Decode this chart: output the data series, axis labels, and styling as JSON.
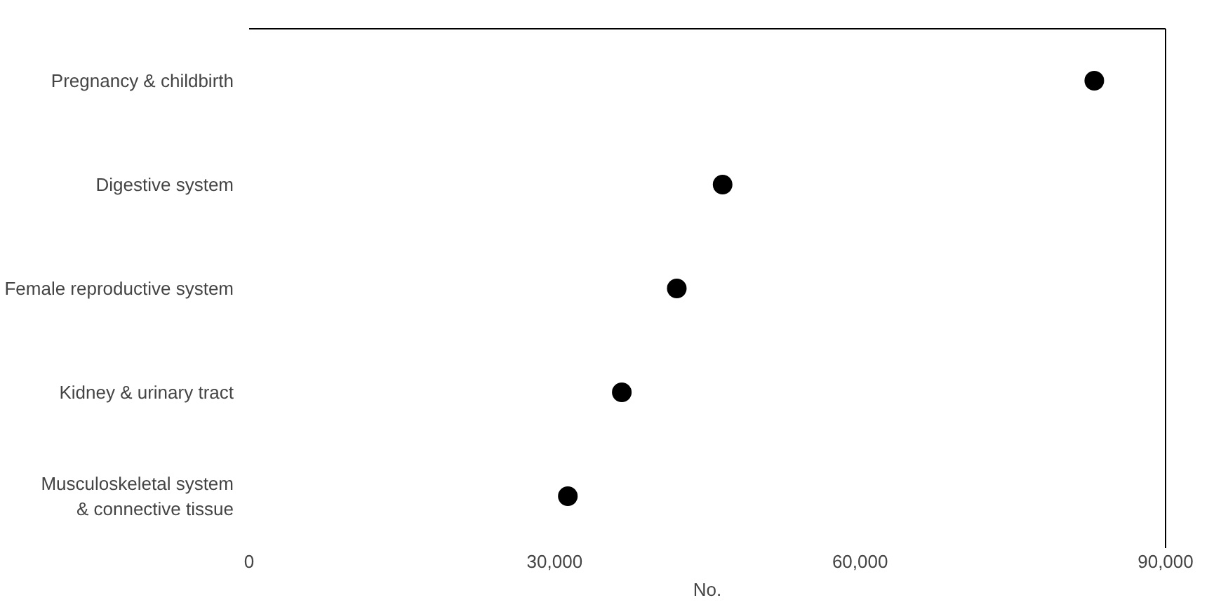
{
  "chart_data": {
    "type": "scatter",
    "orientation": "horizontal",
    "xlabel": "No.",
    "categories": [
      "Pregnancy & childbirth",
      "Digestive system",
      "Female reproductive system",
      "Kidney & urinary tract",
      "Musculoskeletal system\n& connective tissue"
    ],
    "values": [
      83000,
      46500,
      42000,
      36600,
      31300
    ],
    "color": "#000000",
    "marker": "circle",
    "grid": false,
    "xlim": [
      0,
      90000
    ],
    "xticks": [
      {
        "value": 0,
        "label": "0"
      },
      {
        "value": 30000,
        "label": "30,000"
      },
      {
        "value": 60000,
        "label": "60,000"
      },
      {
        "value": 90000,
        "label": "90,000"
      }
    ]
  }
}
